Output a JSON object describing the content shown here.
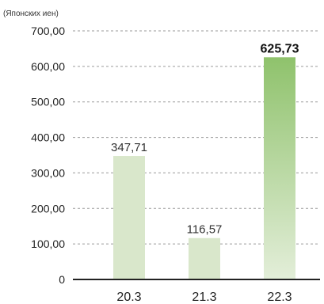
{
  "chart_data": {
    "type": "bar",
    "unit_label": "(Японских иен)",
    "categories": [
      "20.3",
      "21.3",
      "22.3"
    ],
    "values": [
      347.71,
      116.57,
      625.73
    ],
    "value_labels": [
      "347,71",
      "116,57",
      "625,73"
    ],
    "highlight_index": 2,
    "ylim": [
      0,
      700
    ],
    "y_ticks": [
      0,
      100,
      200,
      300,
      400,
      500,
      600,
      700
    ],
    "y_tick_labels": [
      "0",
      "100,00",
      "200,00",
      "300,00",
      "400,00",
      "500,00",
      "600,00",
      "700,00"
    ],
    "grid": true,
    "colors": {
      "bar": "#d9e7cb",
      "highlight_top": "#8fc26c",
      "highlight_bottom": "#e3eed9",
      "grid": "#9a9a9a",
      "axis": "#222222"
    }
  }
}
